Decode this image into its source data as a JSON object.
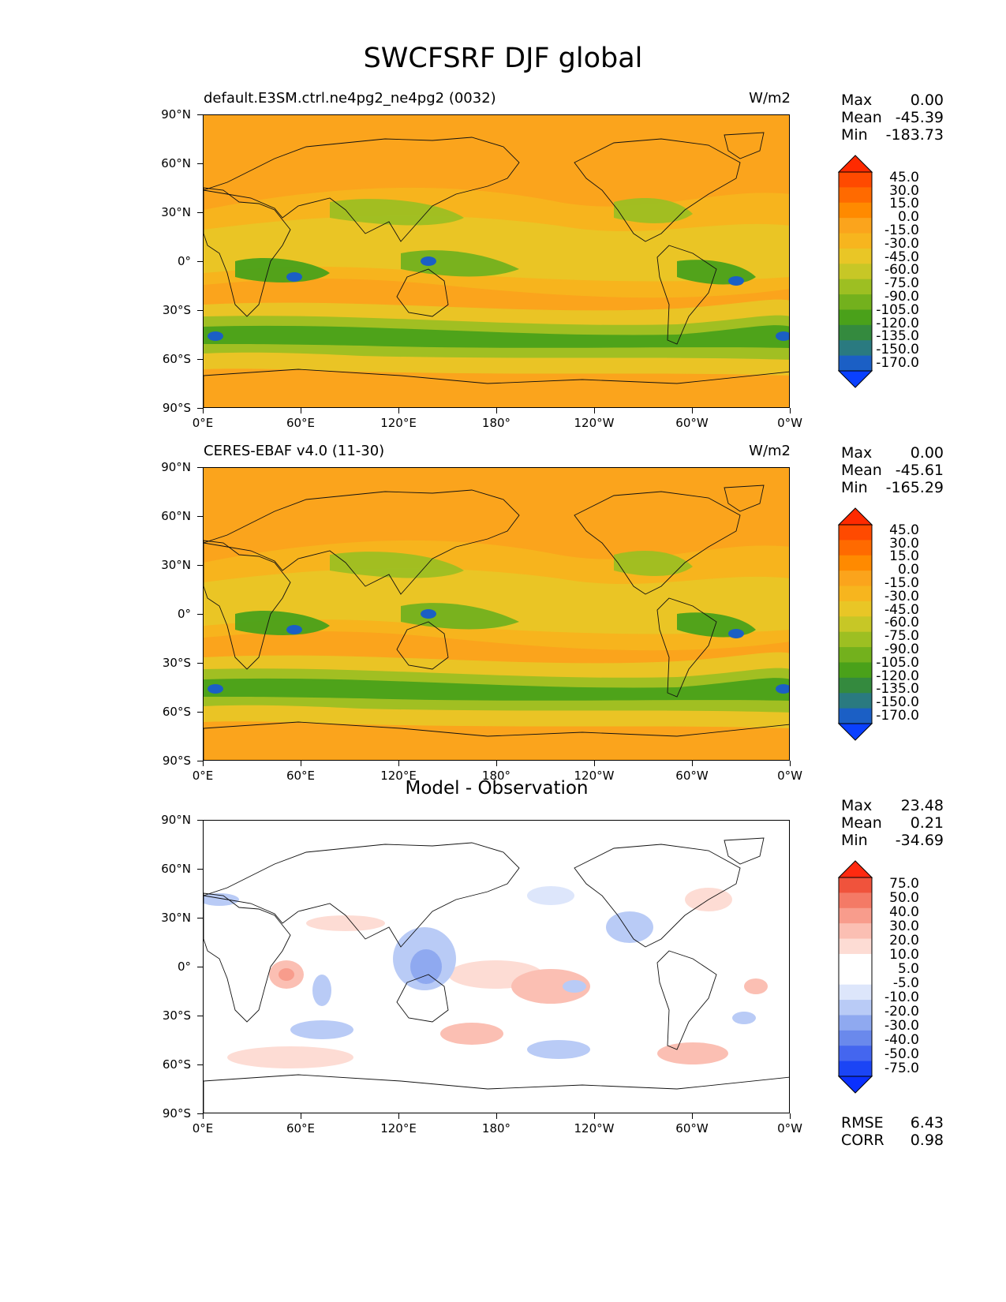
{
  "title": "SWCFSRF DJF global",
  "panels": [
    {
      "left_title": "default.E3SM.ctrl.ne4pg2_ne4pg2 (0032)",
      "units": "W/m2",
      "center_title": "",
      "stats": [
        {
          "label": "Max",
          "value": "0.00"
        },
        {
          "label": "Mean",
          "value": "-45.39"
        },
        {
          "label": "Min",
          "value": "-183.73"
        }
      ],
      "colorbar": [
        "45.0",
        "30.0",
        "15.0",
        "0.0",
        "-15.0",
        "-30.0",
        "-45.0",
        "-60.0",
        "-75.0",
        "-90.0",
        "-105.0",
        "-120.0",
        "-135.0",
        "-150.0",
        "-170.0"
      ],
      "colors": [
        "#ff2a00",
        "#ff4a00",
        "#ff6a00",
        "#ff8a00",
        "#fba41c",
        "#f7b51e",
        "#e9c626",
        "#c7c726",
        "#9dbf22",
        "#73b11d",
        "#4aa11a",
        "#348a3e",
        "#2a7a80",
        "#1b5fc5",
        "#0a40ff"
      ]
    },
    {
      "left_title": "CERES-EBAF v4.0 (11-30)",
      "units": "W/m2",
      "center_title": "",
      "stats": [
        {
          "label": "Max",
          "value": "0.00"
        },
        {
          "label": "Mean",
          "value": "-45.61"
        },
        {
          "label": "Min",
          "value": "-165.29"
        }
      ],
      "colorbar": [
        "45.0",
        "30.0",
        "15.0",
        "0.0",
        "-15.0",
        "-30.0",
        "-45.0",
        "-60.0",
        "-75.0",
        "-90.0",
        "-105.0",
        "-120.0",
        "-135.0",
        "-150.0",
        "-170.0"
      ],
      "colors": [
        "#ff2a00",
        "#ff4a00",
        "#ff6a00",
        "#ff8a00",
        "#fba41c",
        "#f7b51e",
        "#e9c626",
        "#c7c726",
        "#9dbf22",
        "#73b11d",
        "#4aa11a",
        "#348a3e",
        "#2a7a80",
        "#1b5fc5",
        "#0a40ff"
      ]
    },
    {
      "left_title": "",
      "units": "",
      "center_title": "Model - Observation",
      "stats": [
        {
          "label": "Max",
          "value": "23.48"
        },
        {
          "label": "Mean",
          "value": "0.21"
        },
        {
          "label": "Min",
          "value": "-34.69"
        }
      ],
      "colorbar": [
        "75.0",
        "50.0",
        "40.0",
        "30.0",
        "20.0",
        "10.0",
        "5.0",
        "-5.0",
        "-10.0",
        "-20.0",
        "-30.0",
        "-40.0",
        "-50.0",
        "-75.0"
      ],
      "colors": [
        "#ff2a10",
        "#f0533c",
        "#f47a66",
        "#f89c8c",
        "#fbbfb3",
        "#fddcd4",
        "#ffffff",
        "#ffffff",
        "#dde6fb",
        "#b9cbf6",
        "#8fa9f0",
        "#6a89ec",
        "#4466ef",
        "#1b45f5",
        "#0a30ff"
      ],
      "metrics": [
        {
          "label": "RMSE",
          "value": "6.43"
        },
        {
          "label": "CORR",
          "value": "0.98"
        }
      ]
    }
  ],
  "lat_labels": [
    "90°N",
    "60°N",
    "30°N",
    "0°",
    "30°S",
    "60°S",
    "90°S"
  ],
  "lon_labels": [
    "0°E",
    "60°E",
    "120°E",
    "180°",
    "120°W",
    "60°W",
    "0°W"
  ]
}
